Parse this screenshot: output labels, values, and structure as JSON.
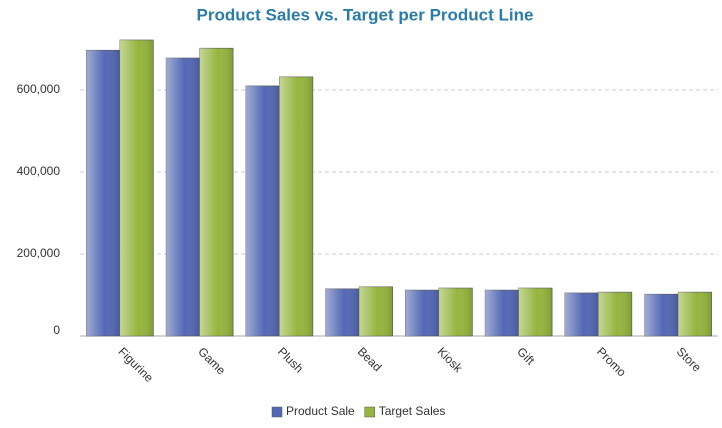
{
  "chart_data": {
    "type": "bar",
    "title": "Product Sales vs. Target per Product Line",
    "categories": [
      "Figurine",
      "Game",
      "Plush",
      "Bead",
      "Kiosk",
      "Gift",
      "Promo",
      "Store"
    ],
    "series": [
      {
        "name": "Product Sale",
        "color": "#5468b4",
        "values": [
          697000,
          678000,
          610000,
          115000,
          112000,
          112000,
          105000,
          102000
        ]
      },
      {
        "name": "Target Sales",
        "color": "#95b53f",
        "values": [
          722000,
          702000,
          632000,
          120000,
          117000,
          117000,
          107000,
          107000
        ]
      }
    ],
    "ylim": [
      0,
      800000
    ],
    "yticks": [
      0,
      {
        "value": 200000,
        "label": "200,000"
      },
      {
        "value": 400000,
        "label": "400,000"
      },
      {
        "value": 600000,
        "label": "600,000"
      }
    ],
    "grid": true,
    "legend": "bottom"
  }
}
